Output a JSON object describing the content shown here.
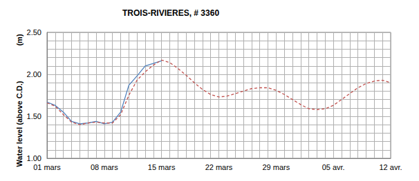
{
  "chart_data": {
    "type": "line",
    "title": "TROIS-RIVIERES, # 3360",
    "ylabel": "Water level (above C.D.)",
    "annotations": [
      {
        "text": "(m)"
      }
    ],
    "categories": [
      "01 mars",
      null,
      null,
      null,
      null,
      null,
      null,
      "08 mars",
      null,
      null,
      null,
      null,
      null,
      null,
      "15 mars",
      null,
      null,
      null,
      null,
      null,
      null,
      "22 mars",
      null,
      null,
      null,
      null,
      null,
      null,
      "29 mars",
      null,
      null,
      null,
      null,
      null,
      null,
      "05 avr.",
      null,
      null,
      null,
      null,
      null,
      null,
      "12 avr."
    ],
    "series": [
      {
        "color": "#4f81bd",
        "line_style": "solid",
        "values": [
          1.67,
          1.63,
          1.55,
          1.44,
          1.41,
          1.42,
          1.44,
          1.41,
          1.43,
          1.55,
          1.87,
          1.98,
          2.1,
          2.13,
          2.16,
          null,
          null,
          null,
          null,
          null,
          null,
          null,
          null,
          null,
          null,
          null,
          null,
          null,
          null,
          null,
          null,
          null,
          null,
          null,
          null,
          null,
          null,
          null,
          null,
          null,
          null,
          null,
          null
        ]
      },
      {
        "color": "#c0504d",
        "line_style": "dashed",
        "values": [
          1.66,
          1.62,
          1.52,
          1.43,
          1.4,
          1.42,
          1.43,
          1.42,
          1.42,
          1.52,
          1.75,
          1.93,
          2.03,
          2.11,
          2.17,
          2.14,
          2.07,
          1.99,
          1.9,
          1.82,
          1.76,
          1.73,
          1.74,
          1.77,
          1.8,
          1.83,
          1.84,
          1.84,
          1.81,
          1.76,
          1.7,
          1.64,
          1.59,
          1.58,
          1.59,
          1.63,
          1.7,
          1.77,
          1.84,
          1.89,
          1.92,
          1.93,
          1.9
        ]
      }
    ],
    "ylim": [
      1,
      2.5
    ],
    "yticks": [
      {
        "value": 1,
        "label": "1.00"
      },
      {
        "value": 1.5,
        "label": "1.50"
      },
      {
        "value": 2,
        "label": "2.00"
      },
      {
        "value": 2.5,
        "label": "2.50"
      }
    ],
    "grid": true
  }
}
